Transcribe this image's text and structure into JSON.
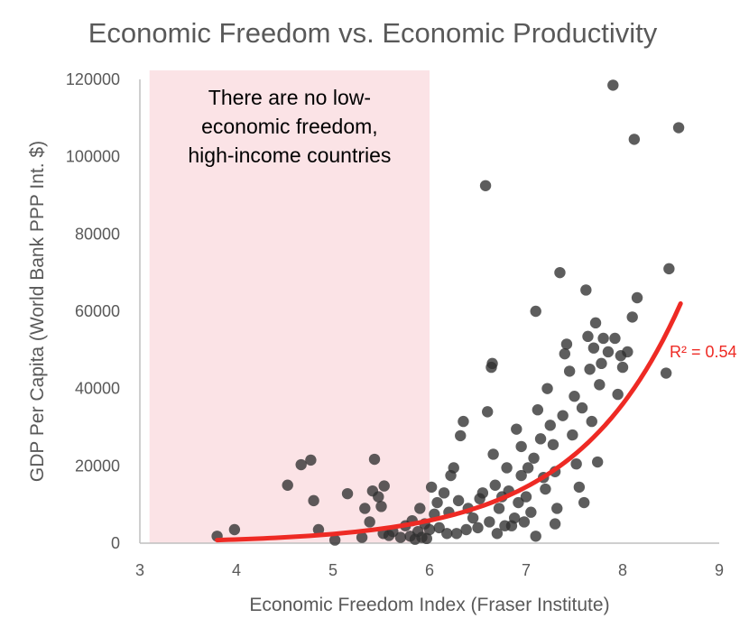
{
  "colors": {
    "highlight": "#fbe3e6",
    "point": "#303030",
    "trendline": "#ee2a24",
    "text": "#595959",
    "axis": "#bfbfbf"
  },
  "chart_data": {
    "type": "scatter",
    "title": "Economic Freedom vs. Economic Productivity",
    "xlabel": "Economic Freedom Index (Fraser Institute)",
    "ylabel": "GDP Per Capita (World Bank PPP Int. $)",
    "xlim": [
      3,
      9
    ],
    "ylim": [
      0,
      120000
    ],
    "x_ticks": [
      "3",
      "4",
      "5",
      "6",
      "7",
      "8",
      "9"
    ],
    "y_ticks": [
      "0",
      "20000",
      "40000",
      "60000",
      "80000",
      "100000",
      "120000"
    ],
    "grid": false,
    "legend": "none",
    "shaded_region": {
      "x_range": [
        3.1,
        6.0
      ],
      "annotation_lines": [
        "There are no low-",
        "economic freedom,",
        "high-income countries"
      ]
    },
    "trendline": {
      "type": "exponential",
      "x_range": [
        3.8,
        8.6
      ],
      "y_start": 800,
      "y_end": 62000,
      "label": "R² = 0.54"
    },
    "points": [
      {
        "x": 3.8,
        "y": 1800
      },
      {
        "x": 3.98,
        "y": 3500
      },
      {
        "x": 4.53,
        "y": 15000
      },
      {
        "x": 4.67,
        "y": 20300
      },
      {
        "x": 4.77,
        "y": 21500
      },
      {
        "x": 4.8,
        "y": 11000
      },
      {
        "x": 4.85,
        "y": 3500
      },
      {
        "x": 5.02,
        "y": 800
      },
      {
        "x": 5.15,
        "y": 12800
      },
      {
        "x": 5.3,
        "y": 1500
      },
      {
        "x": 5.33,
        "y": 9000
      },
      {
        "x": 5.38,
        "y": 5500
      },
      {
        "x": 5.41,
        "y": 13500
      },
      {
        "x": 5.43,
        "y": 21700
      },
      {
        "x": 5.47,
        "y": 12000
      },
      {
        "x": 5.5,
        "y": 9500
      },
      {
        "x": 5.52,
        "y": 2500
      },
      {
        "x": 5.53,
        "y": 14800
      },
      {
        "x": 5.58,
        "y": 2000
      },
      {
        "x": 5.62,
        "y": 3000
      },
      {
        "x": 5.7,
        "y": 1500
      },
      {
        "x": 5.75,
        "y": 4500
      },
      {
        "x": 5.8,
        "y": 1800
      },
      {
        "x": 5.82,
        "y": 5800
      },
      {
        "x": 5.85,
        "y": 1000
      },
      {
        "x": 5.88,
        "y": 3000
      },
      {
        "x": 5.9,
        "y": 9000
      },
      {
        "x": 5.92,
        "y": 1500
      },
      {
        "x": 5.95,
        "y": 5000
      },
      {
        "x": 5.97,
        "y": 1200
      },
      {
        "x": 6.0,
        "y": 3500
      },
      {
        "x": 6.02,
        "y": 14500
      },
      {
        "x": 6.05,
        "y": 7500
      },
      {
        "x": 6.08,
        "y": 10500
      },
      {
        "x": 6.1,
        "y": 4000
      },
      {
        "x": 6.15,
        "y": 13000
      },
      {
        "x": 6.18,
        "y": 2500
      },
      {
        "x": 6.2,
        "y": 8000
      },
      {
        "x": 6.22,
        "y": 17500
      },
      {
        "x": 6.25,
        "y": 19500
      },
      {
        "x": 6.28,
        "y": 2500
      },
      {
        "x": 6.3,
        "y": 11000
      },
      {
        "x": 6.32,
        "y": 27800
      },
      {
        "x": 6.35,
        "y": 31500
      },
      {
        "x": 6.38,
        "y": 3500
      },
      {
        "x": 6.4,
        "y": 9000
      },
      {
        "x": 6.45,
        "y": 6500
      },
      {
        "x": 6.5,
        "y": 4000
      },
      {
        "x": 6.52,
        "y": 11500
      },
      {
        "x": 6.55,
        "y": 13000
      },
      {
        "x": 6.58,
        "y": 92500
      },
      {
        "x": 6.6,
        "y": 34000
      },
      {
        "x": 6.62,
        "y": 5500
      },
      {
        "x": 6.64,
        "y": 45500
      },
      {
        "x": 6.65,
        "y": 46500
      },
      {
        "x": 6.66,
        "y": 23000
      },
      {
        "x": 6.68,
        "y": 15000
      },
      {
        "x": 6.7,
        "y": 2500
      },
      {
        "x": 6.72,
        "y": 9000
      },
      {
        "x": 6.75,
        "y": 12000
      },
      {
        "x": 6.78,
        "y": 4500
      },
      {
        "x": 6.8,
        "y": 19500
      },
      {
        "x": 6.82,
        "y": 13500
      },
      {
        "x": 6.85,
        "y": 4500
      },
      {
        "x": 6.88,
        "y": 6500
      },
      {
        "x": 6.9,
        "y": 29500
      },
      {
        "x": 6.92,
        "y": 10500
      },
      {
        "x": 6.95,
        "y": 17500
      },
      {
        "x": 6.98,
        "y": 5500
      },
      {
        "x": 7.0,
        "y": 12000
      },
      {
        "x": 7.02,
        "y": 19500
      },
      {
        "x": 7.05,
        "y": 8000
      },
      {
        "x": 7.08,
        "y": 22000
      },
      {
        "x": 7.1,
        "y": 60000
      },
      {
        "x": 7.12,
        "y": 34500
      },
      {
        "x": 7.15,
        "y": 27000
      },
      {
        "x": 7.18,
        "y": 17000
      },
      {
        "x": 7.2,
        "y": 14000
      },
      {
        "x": 7.22,
        "y": 40000
      },
      {
        "x": 7.25,
        "y": 30500
      },
      {
        "x": 7.28,
        "y": 25500
      },
      {
        "x": 7.3,
        "y": 18500
      },
      {
        "x": 7.32,
        "y": 9000
      },
      {
        "x": 7.35,
        "y": 70000
      },
      {
        "x": 7.38,
        "y": 33000
      },
      {
        "x": 7.4,
        "y": 49000
      },
      {
        "x": 7.42,
        "y": 51500
      },
      {
        "x": 7.45,
        "y": 44500
      },
      {
        "x": 7.48,
        "y": 28000
      },
      {
        "x": 7.5,
        "y": 38000
      },
      {
        "x": 7.52,
        "y": 20500
      },
      {
        "x": 7.55,
        "y": 14500
      },
      {
        "x": 7.58,
        "y": 35000
      },
      {
        "x": 7.6,
        "y": 10500
      },
      {
        "x": 7.62,
        "y": 65500
      },
      {
        "x": 7.64,
        "y": 53500
      },
      {
        "x": 7.66,
        "y": 45000
      },
      {
        "x": 7.68,
        "y": 31500
      },
      {
        "x": 7.7,
        "y": 50500
      },
      {
        "x": 7.72,
        "y": 57000
      },
      {
        "x": 7.74,
        "y": 21000
      },
      {
        "x": 7.76,
        "y": 41000
      },
      {
        "x": 7.78,
        "y": 46500
      },
      {
        "x": 7.8,
        "y": 53000
      },
      {
        "x": 7.85,
        "y": 49500
      },
      {
        "x": 7.9,
        "y": 118500
      },
      {
        "x": 7.92,
        "y": 53000
      },
      {
        "x": 7.95,
        "y": 38500
      },
      {
        "x": 7.98,
        "y": 48500
      },
      {
        "x": 8.0,
        "y": 45500
      },
      {
        "x": 8.05,
        "y": 49500
      },
      {
        "x": 8.1,
        "y": 58500
      },
      {
        "x": 8.12,
        "y": 104500
      },
      {
        "x": 8.15,
        "y": 63500
      },
      {
        "x": 8.45,
        "y": 44000
      },
      {
        "x": 8.48,
        "y": 71000
      },
      {
        "x": 8.58,
        "y": 107500
      },
      {
        "x": 7.1,
        "y": 1800
      },
      {
        "x": 7.3,
        "y": 5000
      },
      {
        "x": 6.95,
        "y": 25000
      }
    ]
  }
}
